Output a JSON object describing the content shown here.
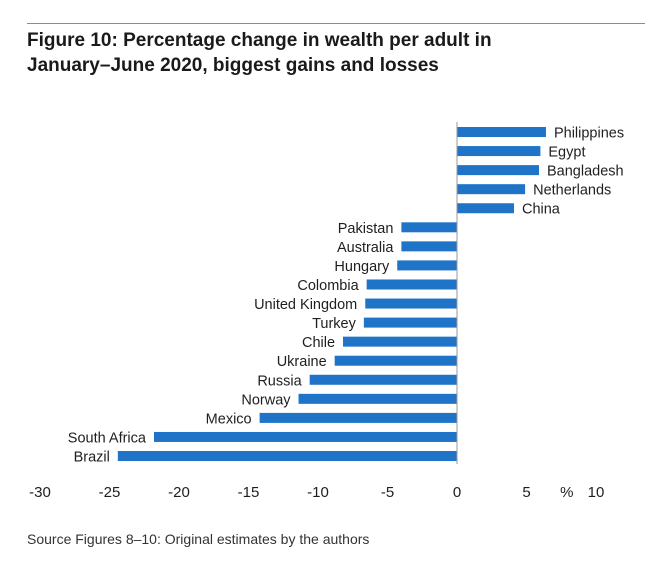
{
  "chart_data": {
    "type": "bar",
    "orientation": "horizontal",
    "title": [
      "Figure 10: Percentage change in wealth per adult in",
      "January–June 2020, biggest gains and losses"
    ],
    "xlabel": "%",
    "ylabel": "",
    "xlim": [
      -30,
      10
    ],
    "xticks": [
      -30,
      -25,
      -20,
      -15,
      -10,
      -5,
      0,
      5,
      10
    ],
    "grid": false,
    "legend": "none",
    "bar_color": "#1f74c8",
    "categories": [
      "Philippines",
      "Egypt",
      "Bangladesh",
      "Netherlands",
      "China",
      "Pakistan",
      "Australia",
      "Hungary",
      "Colombia",
      "United Kingdom",
      "Turkey",
      "Chile",
      "Ukraine",
      "Russia",
      "Norway",
      "Mexico",
      "South Africa",
      "Brazil"
    ],
    "values": [
      6.4,
      6.0,
      5.9,
      4.9,
      4.1,
      -4.0,
      -4.0,
      -4.3,
      -6.5,
      -6.6,
      -6.7,
      -8.2,
      -8.8,
      -10.6,
      -11.4,
      -14.2,
      -21.8,
      -24.4
    ]
  },
  "source": "Source Figures 8–10: Original estimates by the authors"
}
